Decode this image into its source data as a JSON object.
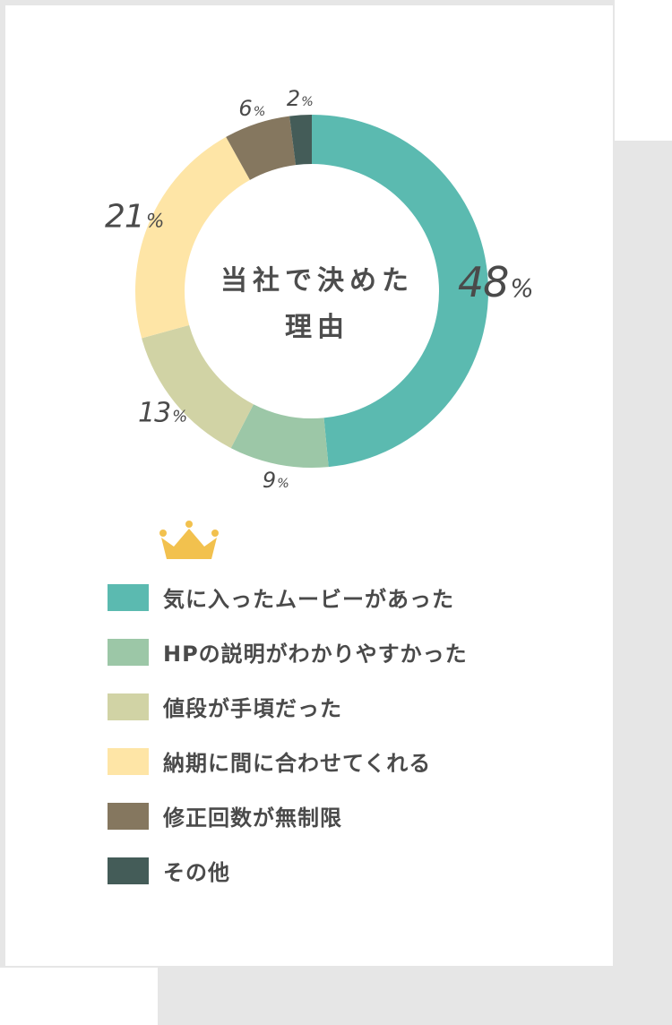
{
  "chart_data": {
    "type": "pie",
    "donut": true,
    "center_label_lines": [
      "当社で決めた",
      "理由"
    ],
    "categories": [
      "気に入ったムービーがあった",
      "HPの説明がわかりやすかった",
      "値段が手頃だった",
      "納期に間に合わせてくれる",
      "修正回数が無制限",
      "その他"
    ],
    "values": [
      48,
      9,
      13,
      21,
      6,
      2
    ],
    "value_labels": [
      "48",
      "9",
      "13",
      "21",
      "6",
      "2"
    ],
    "value_suffix": "%",
    "colors": [
      "#5bbab0",
      "#9cc7a7",
      "#d1d3a5",
      "#fee5a6",
      "#85775f",
      "#445c58"
    ],
    "legend_placement": "bottom",
    "highlight": {
      "category_index": 0,
      "icon": "crown-icon",
      "icon_color": "#f2c14e"
    }
  }
}
